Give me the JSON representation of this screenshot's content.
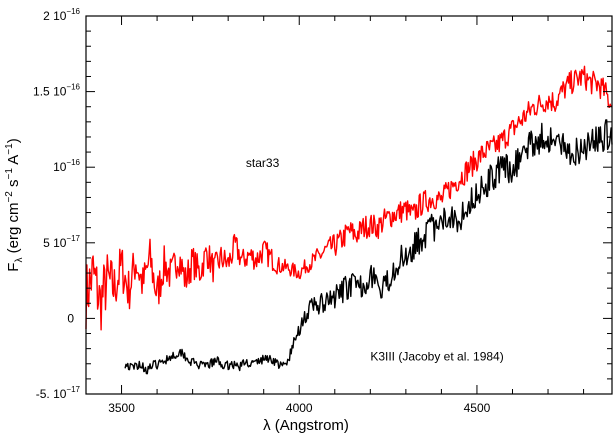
{
  "chart_data": {
    "type": "line",
    "title": "",
    "xlabel": "λ (Angstrom)",
    "ylabel": {
      "main": "F",
      "sub": "λ",
      "units": [
        {
          "t": " (erg cm",
          "sup": false
        },
        {
          "t": "−2",
          "sup": true
        },
        {
          "t": " s",
          "sup": false
        },
        {
          "t": "−1",
          "sup": true
        },
        {
          "t": " A",
          "sup": false
        },
        {
          "t": "−1",
          "sup": true
        },
        {
          "t": ")",
          "sup": false
        }
      ]
    },
    "xlim": [
      3400,
      4880
    ],
    "ylim": [
      -5e-17,
      2e-16
    ],
    "grid": false,
    "x_ticks": [
      {
        "value": 3500,
        "label": "3500"
      },
      {
        "value": 4000,
        "label": "4000"
      },
      {
        "value": 4500,
        "label": "4500"
      }
    ],
    "y_ticks": [
      {
        "value": -5e-17,
        "mant": "-5.",
        "exp": "−17"
      },
      {
        "value": 0,
        "mant": "0",
        "exp": ""
      },
      {
        "value": 5e-17,
        "mant": "5",
        "exp": "−17"
      },
      {
        "value": 1e-16,
        "mant": "",
        "exp": "−16"
      },
      {
        "value": 1.5e-16,
        "mant": "1.5",
        "exp": "−16"
      },
      {
        "value": 2e-16,
        "mant": "2",
        "exp": "−16"
      }
    ],
    "annotations": [
      {
        "text": "star33",
        "x": 3850,
        "y": 1e-16
      },
      {
        "text": "K3III (Jacoby et al. 1984)",
        "x": 4200,
        "y": -2.8e-17
      }
    ],
    "series": [
      {
        "color": "#ff0000",
        "x": [
          3400,
          3420,
          3440,
          3460,
          3480,
          3500,
          3520,
          3540,
          3560,
          3580,
          3600,
          3620,
          3640,
          3660,
          3680,
          3700,
          3720,
          3740,
          3760,
          3780,
          3800,
          3820,
          3840,
          3860,
          3880,
          3900,
          3920,
          3940,
          3960,
          3980,
          4000,
          4020,
          4040,
          4060,
          4080,
          4100,
          4120,
          4140,
          4160,
          4180,
          4200,
          4220,
          4240,
          4260,
          4280,
          4300,
          4320,
          4340,
          4360,
          4380,
          4400,
          4420,
          4440,
          4460,
          4480,
          4500,
          4520,
          4540,
          4560,
          4580,
          4600,
          4620,
          4640,
          4660,
          4680,
          4700,
          4720,
          4740,
          4760,
          4780,
          4800,
          4820,
          4840,
          4860,
          4880
        ],
        "y": [
          1.5e-17,
          3e-17,
          1e-17,
          2.5e-17,
          2e-17,
          3.5e-17,
          1.8e-17,
          3.8e-17,
          2.2e-17,
          4e-17,
          1.5e-17,
          3.6e-17,
          2.8e-17,
          4.2e-17,
          2.5e-17,
          3.8e-17,
          3e-17,
          4.4e-17,
          3.2e-17,
          4e-17,
          3.6e-17,
          4.8e-17,
          3.8e-17,
          4.2e-17,
          3.9e-17,
          4.5e-17,
          4e-17,
          3.5e-17,
          3.4e-17,
          3.2e-17,
          3e-17,
          3.5e-17,
          3.8e-17,
          4.2e-17,
          4.6e-17,
          4.8e-17,
          5.2e-17,
          5.8e-17,
          5.5e-17,
          6e-17,
          6.2e-17,
          6e-17,
          6.5e-17,
          6.8e-17,
          7e-17,
          7.2e-17,
          6.8e-17,
          7.5e-17,
          7.8e-17,
          8e-17,
          7.8e-17,
          8.5e-17,
          9e-17,
          9.5e-17,
          1e-16,
          1.05e-16,
          1.1e-16,
          1.12e-16,
          1.15e-16,
          1.2e-16,
          1.25e-16,
          1.3e-16,
          1.35e-16,
          1.4e-16,
          1.42e-16,
          1.45e-16,
          1.43e-16,
          1.5e-16,
          1.55e-16,
          1.58e-16,
          1.6e-16,
          1.56e-16,
          1.55e-16,
          1.5e-16,
          1.4e-16
        ],
        "noise": [
          2.2e-17,
          2.2e-17,
          2.2e-17,
          2e-17,
          1.8e-17,
          1.6e-17,
          1.6e-17,
          1.4e-17,
          1.4e-17,
          1.4e-17,
          1.4e-17,
          1.2e-17,
          1.2e-17,
          1.2e-17,
          1.1e-17,
          1.1e-17,
          1e-17,
          1e-17,
          1e-17,
          9e-18,
          9e-18,
          9e-18,
          8e-18,
          8e-18,
          8e-18,
          8e-18,
          8e-18,
          6e-18,
          5e-18,
          5e-18,
          5e-18,
          5e-18,
          6e-18,
          7e-18,
          7e-18,
          8e-18,
          8e-18,
          8e-18,
          8e-18,
          8e-18,
          8e-18,
          8e-18,
          8e-18,
          8e-18,
          8e-18,
          8e-18,
          8e-18,
          8e-18,
          8e-18,
          8e-18,
          8e-18,
          8e-18,
          8e-18,
          8e-18,
          8e-18,
          8e-18,
          8e-18,
          8e-18,
          8e-18,
          8e-18,
          8e-18,
          8e-18,
          8e-18,
          8e-18,
          8e-18,
          8e-18,
          8e-18,
          8e-18,
          8e-18,
          8e-18,
          8e-18,
          8e-18,
          8e-18,
          8e-18,
          8e-18
        ],
        "seed": 7
      },
      {
        "color": "#000000",
        "x": [
          3510,
          3530,
          3550,
          3570,
          3590,
          3610,
          3630,
          3650,
          3670,
          3690,
          3710,
          3730,
          3750,
          3770,
          3790,
          3810,
          3830,
          3850,
          3870,
          3890,
          3910,
          3930,
          3950,
          3965,
          3980,
          3995,
          4010,
          4030,
          4050,
          4070,
          4090,
          4110,
          4130,
          4150,
          4170,
          4190,
          4210,
          4230,
          4250,
          4270,
          4290,
          4310,
          4330,
          4350,
          4370,
          4390,
          4410,
          4430,
          4450,
          4470,
          4490,
          4510,
          4530,
          4550,
          4570,
          4590,
          4610,
          4630,
          4650,
          4670,
          4690,
          4710,
          4730,
          4750,
          4770,
          4790,
          4810,
          4830,
          4850,
          4870,
          4880
        ],
        "y": [
          -3e-17,
          -3.3e-17,
          -3e-17,
          -3.4e-17,
          -3.1e-17,
          -3e-17,
          -2.6e-17,
          -2.4e-17,
          -2.2e-17,
          -2.8e-17,
          -3e-17,
          -3.2e-17,
          -3e-17,
          -2.8e-17,
          -3.2e-17,
          -3e-17,
          -3.2e-17,
          -2.9e-17,
          -3e-17,
          -2.8e-17,
          -2.6e-17,
          -2.8e-17,
          -3.2e-17,
          -3e-17,
          -2e-17,
          -1e-17,
          0.0,
          5e-18,
          1e-17,
          8e-18,
          1.2e-17,
          1.5e-17,
          2e-17,
          2.2e-17,
          2e-17,
          2.5e-17,
          3e-17,
          1.5e-17,
          2.5e-17,
          3.5e-17,
          4e-17,
          4.5e-17,
          5e-17,
          5.5e-17,
          6e-17,
          5.8e-17,
          6.5e-17,
          7e-17,
          6.5e-17,
          7.5e-17,
          8e-17,
          8.5e-17,
          9e-17,
          9.5e-17,
          1e-16,
          9.8e-17,
          1.02e-16,
          1.1e-16,
          1.15e-16,
          1.18e-16,
          1.2e-16,
          1.18e-16,
          1.15e-16,
          1.12e-16,
          1.1e-16,
          1.12e-16,
          1.15e-16,
          1.18e-16,
          1.2e-16,
          1.22e-16,
          1.15e-16
        ],
        "noise": [
          3e-18,
          3e-18,
          3e-18,
          3e-18,
          3e-18,
          3e-18,
          3e-18,
          3e-18,
          3e-18,
          3e-18,
          3e-18,
          3e-18,
          3e-18,
          3e-18,
          3e-18,
          3e-18,
          3e-18,
          3e-18,
          3e-18,
          3e-18,
          3e-18,
          3e-18,
          3e-18,
          3e-18,
          4e-18,
          5e-18,
          6e-18,
          7e-18,
          8e-18,
          8e-18,
          8e-18,
          8e-18,
          8e-18,
          8e-18,
          8e-18,
          8e-18,
          9e-18,
          9e-18,
          9e-18,
          9e-18,
          9e-18,
          9e-18,
          1e-17,
          1e-17,
          1e-17,
          1e-17,
          1e-17,
          1e-17,
          1e-17,
          1e-17,
          1e-17,
          1e-17,
          1e-17,
          1e-17,
          1e-17,
          1e-17,
          1e-17,
          1e-17,
          1e-17,
          1e-17,
          1e-17,
          1e-17,
          1e-17,
          1e-17,
          1e-17,
          1e-17,
          1e-17,
          1e-17,
          1e-17,
          1e-17,
          1e-17
        ],
        "seed": 19
      }
    ]
  }
}
